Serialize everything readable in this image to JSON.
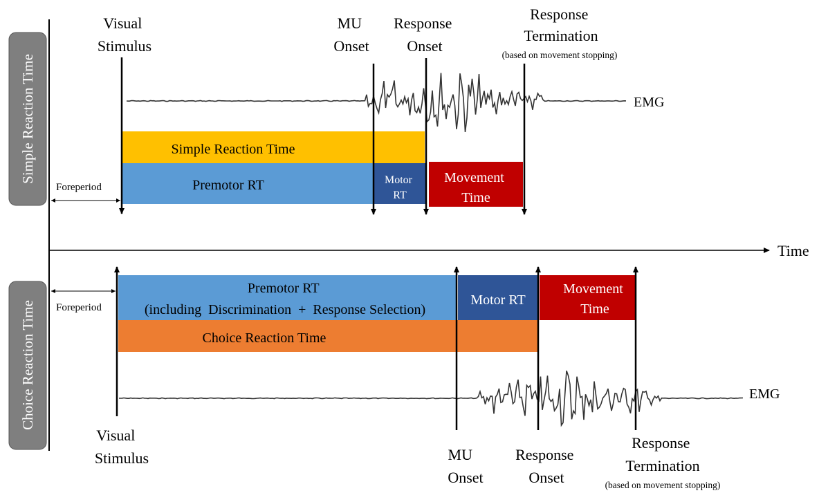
{
  "panels": {
    "simple_label": "Simple Reaction Time",
    "choice_label": "Choice Reaction Time"
  },
  "time_axis": {
    "label": "Time"
  },
  "simple": {
    "visual_stimulus": [
      "Visual",
      "Stimulus"
    ],
    "mu_onset": [
      "MU",
      "Onset"
    ],
    "response_onset": [
      "Response",
      "Onset"
    ],
    "response_termination": [
      "Response",
      "Termination"
    ],
    "termination_note": "(based on movement stopping)",
    "emg_label": "EMG",
    "foreperiod": "Foreperiod",
    "bar_simple_rt": "Simple Reaction Time",
    "bar_premotor_rt": "Premotor RT",
    "bar_motor_rt": [
      "Motor",
      "RT"
    ],
    "bar_movement_time": [
      "Movement",
      "Time"
    ]
  },
  "choice": {
    "visual_stimulus": [
      "Visual",
      "Stimulus"
    ],
    "mu_onset": [
      "MU",
      "Onset"
    ],
    "response_onset": [
      "Response",
      "Onset"
    ],
    "response_termination": [
      "Response",
      "Termination"
    ],
    "termination_note": "(based on movement stopping)",
    "emg_label": "EMG",
    "foreperiod": "Foreperiod",
    "bar_premotor_rt": [
      "Premotor RT",
      "(including  Discrimination  +  Response Selection)"
    ],
    "bar_motor_rt": "Motor RT",
    "bar_movement_time": [
      "Movement",
      "Time"
    ],
    "bar_choice_rt": "Choice Reaction Time"
  },
  "colors": {
    "yellow": "#FFC000",
    "blue": "#5B9BD5",
    "dark_blue": "#2F5597",
    "red": "#C00000",
    "orange": "#ED7D31",
    "panel_label_bg": "#7F7F7F"
  }
}
